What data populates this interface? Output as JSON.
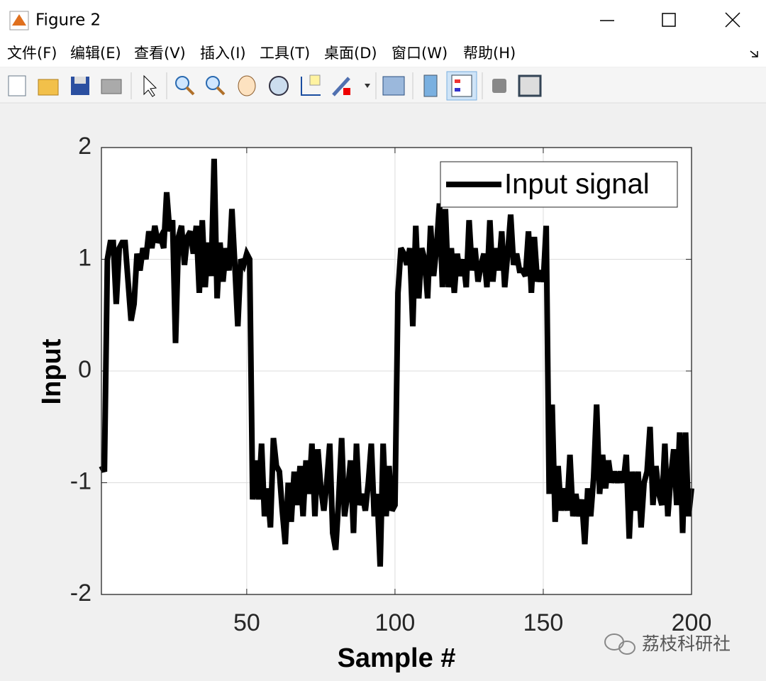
{
  "window": {
    "title": "Figure 2",
    "menus": [
      "文件(F)",
      "编辑(E)",
      "查看(V)",
      "插入(I)",
      "工具(T)",
      "桌面(D)",
      "窗口(W)",
      "帮助(H)"
    ],
    "watermark": "荔枝科研社"
  },
  "chart_data": {
    "type": "line",
    "xlabel": "Sample #",
    "ylabel": "Input",
    "xlim": [
      1,
      200
    ],
    "xticks": [
      50,
      100,
      150,
      200
    ],
    "ylim": [
      -2,
      2
    ],
    "yticks": [
      -2,
      -1,
      0,
      1,
      2
    ],
    "grid": true,
    "legend": "northeast",
    "x": [
      1,
      2,
      3,
      4,
      5,
      6,
      7,
      8,
      9,
      10,
      11,
      12,
      13,
      14,
      15,
      16,
      17,
      18,
      19,
      20,
      21,
      22,
      23,
      24,
      25,
      26,
      27,
      28,
      29,
      30,
      31,
      32,
      33,
      34,
      35,
      36,
      37,
      38,
      39,
      40,
      41,
      42,
      43,
      44,
      45,
      46,
      47,
      48,
      49,
      50,
      51,
      52,
      53,
      54,
      55,
      56,
      57,
      58,
      59,
      60,
      61,
      62,
      63,
      64,
      65,
      66,
      67,
      68,
      69,
      70,
      71,
      72,
      73,
      74,
      75,
      76,
      77,
      78,
      79,
      80,
      81,
      82,
      83,
      84,
      85,
      86,
      87,
      88,
      89,
      90,
      91,
      92,
      93,
      94,
      95,
      96,
      97,
      98,
      99,
      100,
      101,
      102,
      103,
      104,
      105,
      106,
      107,
      108,
      109,
      110,
      111,
      112,
      113,
      114,
      115,
      116,
      117,
      118,
      119,
      120,
      121,
      122,
      123,
      124,
      125,
      126,
      127,
      128,
      129,
      130,
      131,
      132,
      133,
      134,
      135,
      136,
      137,
      138,
      139,
      140,
      141,
      142,
      143,
      144,
      145,
      146,
      147,
      148,
      149,
      150,
      151,
      152,
      153,
      154,
      155,
      156,
      157,
      158,
      159,
      160,
      161,
      162,
      163,
      164,
      165,
      166,
      167,
      168,
      169,
      170,
      171,
      172,
      173,
      174,
      175,
      176,
      177,
      178,
      179,
      180,
      181,
      182,
      183,
      184,
      185,
      186,
      187,
      188,
      189,
      190,
      191,
      192,
      193,
      194,
      195,
      196,
      197,
      198,
      199,
      200
    ],
    "series": [
      {
        "name": "Input signal",
        "color": "#000000",
        "values": [
          -0.85,
          -0.9,
          1.0,
          1.15,
          1.15,
          0.6,
          1.1,
          1.15,
          1.15,
          0.8,
          0.45,
          0.6,
          1.05,
          0.9,
          1.1,
          1.0,
          1.25,
          1.1,
          1.3,
          1.15,
          1.2,
          1.1,
          1.6,
          1.25,
          1.35,
          0.25,
          1.2,
          1.3,
          0.95,
          1.2,
          1.25,
          1.05,
          1.3,
          0.7,
          1.35,
          0.75,
          1.15,
          0.85,
          1.9,
          0.65,
          1.15,
          0.8,
          1.1,
          0.9,
          1.45,
          0.95,
          0.4,
          1.0,
          0.95,
          1.05,
          1.0,
          -1.15,
          -0.8,
          -1.15,
          -0.65,
          -1.3,
          -1.05,
          -1.4,
          -0.6,
          -0.85,
          -0.9,
          -1.25,
          -1.55,
          -1.0,
          -1.35,
          -0.9,
          -1.2,
          -0.85,
          -1.3,
          -0.8,
          -1.1,
          -0.65,
          -1.3,
          -0.7,
          -1.05,
          -1.25,
          -1.0,
          -0.65,
          -1.45,
          -1.6,
          -1.15,
          -0.6,
          -1.3,
          -1.1,
          -0.8,
          -1.45,
          -0.65,
          -1.2,
          -1.1,
          -1.25,
          -1.0,
          -0.65,
          -1.3,
          -1.1,
          -1.75,
          -0.65,
          -1.3,
          -0.85,
          -1.25,
          -1.2,
          0.7,
          1.1,
          1.05,
          0.95,
          1.1,
          0.4,
          1.3,
          0.65,
          1.1,
          1.0,
          0.65,
          1.3,
          0.85,
          1.1,
          1.5,
          0.75,
          1.45,
          0.75,
          1.1,
          0.7,
          1.05,
          0.85,
          1.0,
          0.75,
          1.35,
          0.9,
          1.1,
          0.8,
          0.95,
          1.05,
          0.75,
          1.35,
          0.8,
          1.1,
          0.9,
          1.25,
          0.75,
          1.05,
          1.4,
          0.95,
          1.05,
          0.9,
          0.9,
          0.85,
          1.25,
          0.7,
          1.2,
          0.8,
          0.9,
          0.8,
          1.3,
          -1.1,
          -0.3,
          -1.35,
          -0.85,
          -1.25,
          -1.05,
          -1.25,
          -0.75,
          -1.3,
          -1.1,
          -1.3,
          -1.15,
          -1.55,
          -1.05,
          -1.3,
          -0.95,
          -0.3,
          -1.1,
          -0.75,
          -1.05,
          -0.8,
          -1.0,
          -0.9,
          -1.0,
          -0.9,
          -1.0,
          -0.75,
          -1.5,
          -0.9,
          -1.25,
          -0.9,
          -1.4,
          -1.0,
          -0.9,
          -0.5,
          -1.2,
          -0.85,
          -1.1,
          -1.2,
          -0.65,
          -1.3,
          -0.95,
          -0.7,
          -1.2,
          -0.55,
          -1.45,
          -0.55,
          -1.3,
          -1.05
        ]
      }
    ]
  }
}
